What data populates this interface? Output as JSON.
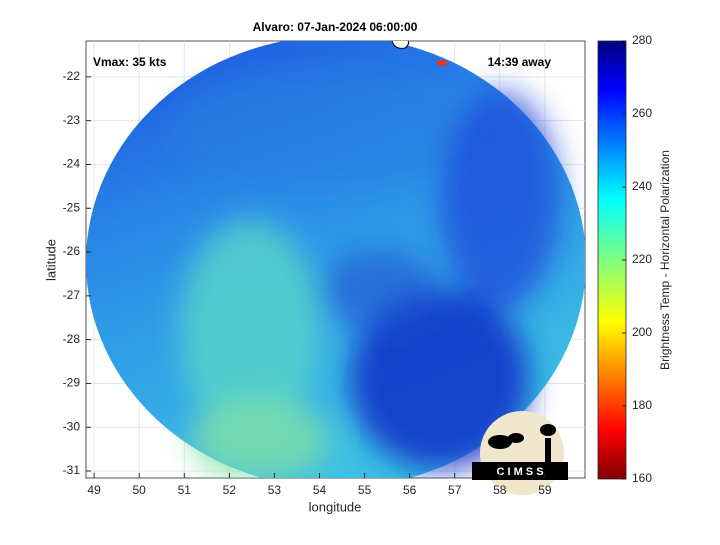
{
  "chart_data": {
    "type": "map",
    "title": "Alvaro: 07-Jan-2024 06:00:00",
    "annotations": [
      "Vmax: 35 kts",
      "14:39 away"
    ],
    "x_label": "longitude",
    "y_label": "latitude",
    "xlim": [
      48.82,
      59.89
    ],
    "ylim": [
      -31.16,
      -21.18
    ],
    "xticks": [
      49,
      50,
      51,
      52,
      53,
      54,
      55,
      56,
      57,
      58,
      59
    ],
    "yticks": [
      -31,
      -30,
      -29,
      -28,
      -27,
      -26,
      -25,
      -24,
      -23,
      -22
    ],
    "grid": true,
    "colorbar": {
      "label": "Brightness Temp - Horizontal Polarization",
      "lim": [
        160,
        280
      ],
      "ticks": [
        160,
        180,
        200,
        220,
        240,
        260,
        280
      ]
    },
    "logo_text": "C I M S S"
  }
}
